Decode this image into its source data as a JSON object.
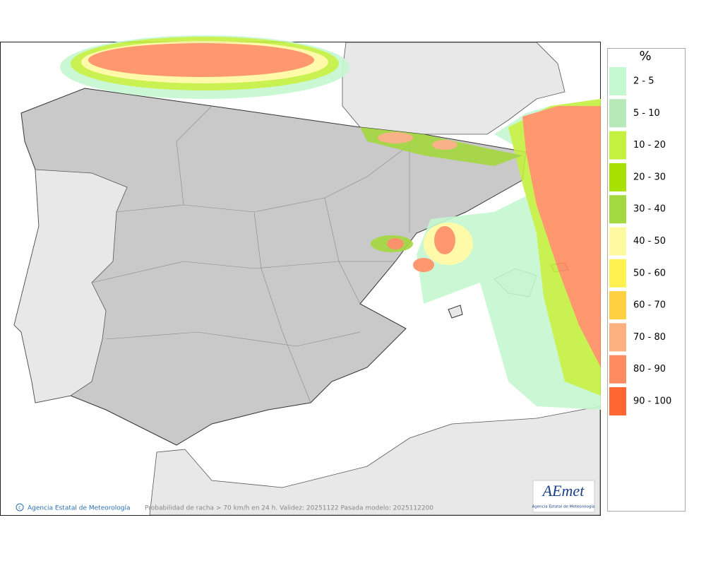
{
  "legend": {
    "title": "%",
    "items": [
      {
        "label": "2 - 5",
        "color": "#c6f8d0"
      },
      {
        "label": "5 - 10",
        "color": "#b6e8b8"
      },
      {
        "label": "10 - 20",
        "color": "#c4f040"
      },
      {
        "label": "20 - 30",
        "color": "#a8e000"
      },
      {
        "label": "30 - 40",
        "color": "#a4d840"
      },
      {
        "label": "40 - 50",
        "color": "#fffaa0"
      },
      {
        "label": "50 - 60",
        "color": "#fff250"
      },
      {
        "label": "60 - 70",
        "color": "#ffd040"
      },
      {
        "label": "70 - 80",
        "color": "#ffb080"
      },
      {
        "label": "80 - 90",
        "color": "#ff8c60"
      },
      {
        "label": "90 - 100",
        "color": "#ff6632"
      }
    ]
  },
  "footer": {
    "copyright": "Agencia Estatal de Meteorología",
    "caption": "Probabilidad de racha > 70 km/h en 24 h. Validez: 20251122 Pasada modelo: 2025112200"
  },
  "logo": {
    "text": "AEmet",
    "subtitle": "Agencia Estatal de Meteorología"
  }
}
